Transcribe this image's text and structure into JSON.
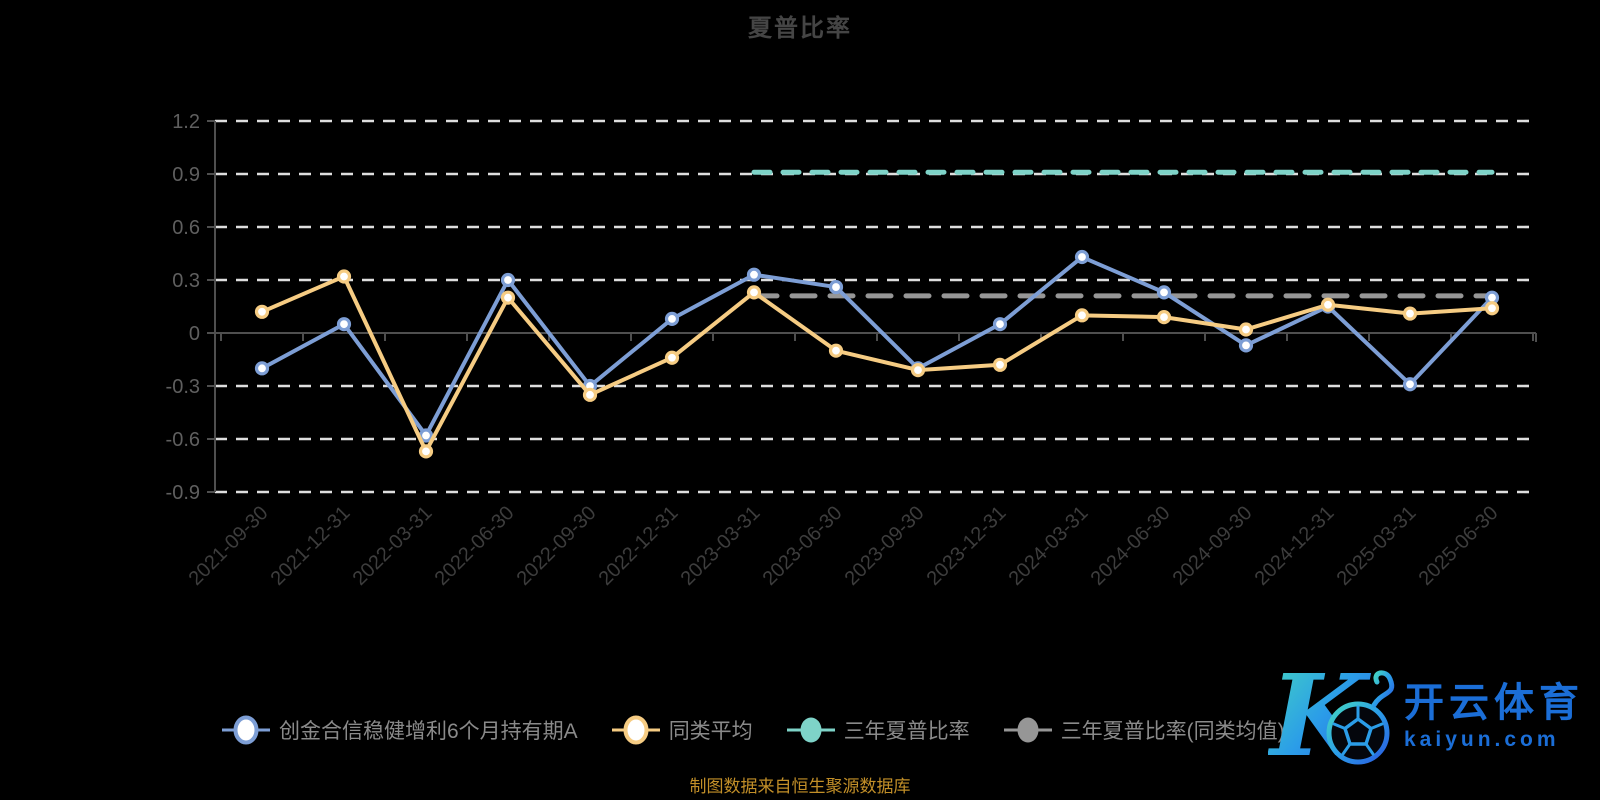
{
  "title": "夏普比率",
  "source_note": "制图数据来自恒生聚源数据库",
  "watermark": {
    "logo_letter": "K",
    "brand": "开云体育",
    "domain": "kaiyun.com"
  },
  "colors": {
    "background": "#000000",
    "fund_line": "#7d9ed5",
    "peer_line": "#f6cc83",
    "three_year_line": "#7ed3c8",
    "three_year_peer_line": "#969696",
    "gridline": "#dedede",
    "axis": "#4f4f4f",
    "y_tick_label": "#5f5f5f",
    "x_tick_label": "#3d3d3d",
    "title_text": "#454545",
    "legend_text": "#8a8a8a",
    "source_text": "#c28f28",
    "watermark_blue": "#1b6ed7",
    "marker_fill": "#ffffff"
  },
  "chart_data": {
    "type": "line",
    "title": "夏普比率",
    "xlabel": "",
    "ylabel": "",
    "ylim": [
      -0.9,
      1.2
    ],
    "yticks": [
      1.2,
      0.9,
      0.6,
      0.3,
      0,
      -0.3,
      -0.6,
      -0.9
    ],
    "grid": true,
    "legend_position": "bottom",
    "x": [
      "2021-09-30",
      "2021-12-31",
      "2022-03-31",
      "2022-06-30",
      "2022-09-30",
      "2022-12-31",
      "2023-03-31",
      "2023-06-30",
      "2023-09-30",
      "2023-12-31",
      "2024-03-31",
      "2024-06-30",
      "2024-09-30",
      "2024-12-31",
      "2025-03-31",
      "2025-06-30"
    ],
    "series": [
      {
        "name": "创金合信稳健增利6个月持有期A",
        "color": "#7d9ed5",
        "line_style": "solid",
        "marker": "hollow-circle",
        "values": [
          -0.2,
          0.05,
          -0.58,
          0.3,
          -0.3,
          0.08,
          0.33,
          0.26,
          -0.2,
          0.05,
          0.43,
          0.23,
          -0.07,
          0.15,
          -0.29,
          0.2
        ]
      },
      {
        "name": "同类平均",
        "color": "#f6cc83",
        "line_style": "solid",
        "marker": "hollow-circle",
        "values": [
          0.12,
          0.32,
          -0.67,
          0.2,
          -0.35,
          -0.14,
          0.23,
          -0.1,
          -0.21,
          -0.18,
          0.1,
          0.09,
          0.02,
          0.16,
          0.11,
          0.14
        ]
      },
      {
        "name": "三年夏普比率",
        "color": "#7ed3c8",
        "line_style": "dashed",
        "marker": "none",
        "values": [
          null,
          null,
          null,
          null,
          null,
          null,
          0.91,
          0.91,
          0.91,
          0.91,
          0.91,
          0.91,
          0.91,
          0.91,
          0.91,
          0.91
        ]
      },
      {
        "name": "三年夏普比率(同类均值)",
        "color": "#969696",
        "line_style": "dashed",
        "marker": "none",
        "values": [
          null,
          null,
          null,
          null,
          null,
          null,
          0.21,
          0.21,
          0.21,
          0.21,
          0.21,
          0.21,
          0.21,
          0.21,
          0.21,
          0.21
        ]
      }
    ]
  },
  "legend": {
    "items": [
      {
        "label": "创金合信稳健增利6个月持有期A",
        "color": "#7d9ed5",
        "swatch": "hollow"
      },
      {
        "label": "同类平均",
        "color": "#f6cc83",
        "swatch": "hollow"
      },
      {
        "label": "三年夏普比率",
        "color": "#7ed3c8",
        "swatch": "solid"
      },
      {
        "label": "三年夏普比率(同类均值)",
        "color": "#969696",
        "swatch": "solid"
      }
    ]
  }
}
